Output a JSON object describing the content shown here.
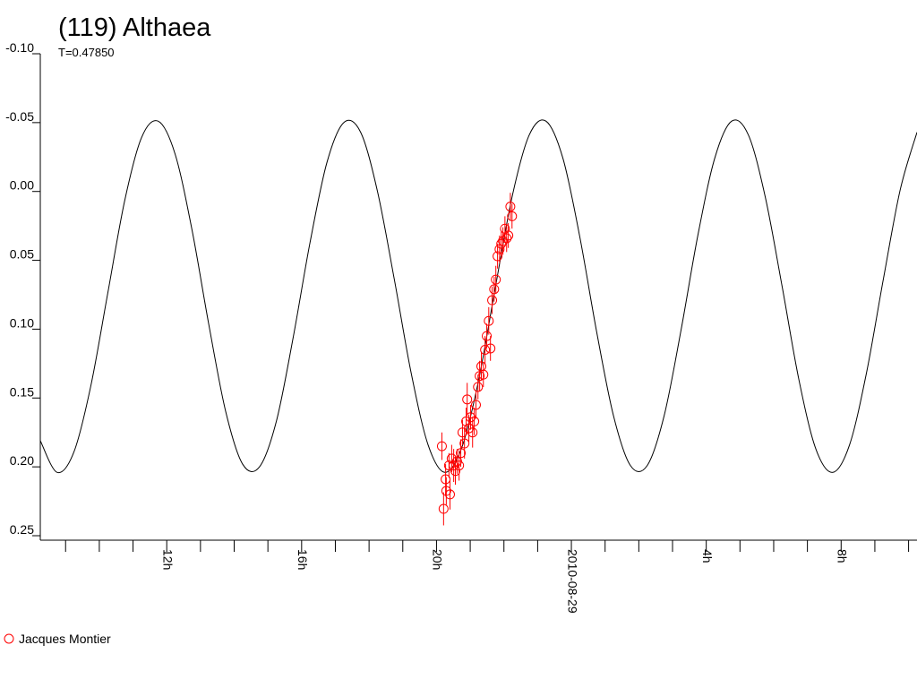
{
  "chart_data": {
    "type": "scatter",
    "title": "(119) Althaea",
    "subtitle": "T=0.47850",
    "xlim": [
      8.25,
      34.25
    ],
    "xticks": [
      {
        "value": 12,
        "label": "12h"
      },
      {
        "value": 16,
        "label": "16h"
      },
      {
        "value": 20,
        "label": "20h"
      },
      {
        "value": 24,
        "label": "2010-08-29"
      },
      {
        "value": 28,
        "label": "4h"
      },
      {
        "value": 32,
        "label": "8h"
      }
    ],
    "xminorticks": [
      9,
      10,
      11,
      13,
      14,
      15,
      17,
      18,
      19,
      21,
      22,
      23,
      25,
      26,
      27,
      29,
      30,
      31,
      33,
      34
    ],
    "ylim": [
      -0.1,
      0.25
    ],
    "y_inverted": true,
    "yticks": [
      {
        "value": -0.1,
        "label": "-0.10"
      },
      {
        "value": -0.05,
        "label": "-0.05"
      },
      {
        "value": 0,
        "label": "0.00"
      },
      {
        "value": 0.05,
        "label": "0.05"
      },
      {
        "value": 0.1,
        "label": "0.10"
      },
      {
        "value": 0.15,
        "label": "0.15"
      },
      {
        "value": 0.2,
        "label": "0.20"
      },
      {
        "value": 0.25,
        "label": "0.25"
      }
    ],
    "curve": {
      "color": "#000000",
      "x": [
        8.25,
        8.75,
        9.25,
        9.75,
        10.25,
        10.75,
        11.25,
        11.75,
        12.25,
        12.75,
        13.25,
        13.75,
        14.25,
        14.75,
        15.25,
        15.75,
        16.25,
        16.75,
        17.25,
        17.75,
        18.25,
        18.75,
        19.25,
        19.75,
        20.25,
        20.75,
        21.25,
        21.75,
        22.25,
        22.75,
        23.25,
        23.75,
        24.25,
        24.75,
        25.25,
        25.75,
        26.25,
        26.75,
        27.25,
        27.75,
        28.25,
        28.75,
        29.25,
        29.75,
        30.25,
        30.75,
        31.25,
        31.75,
        32.25,
        32.75,
        33.25,
        33.75,
        34.25
      ],
      "values": [
        0.181,
        0.204,
        0.189,
        0.141,
        0.074,
        0.007,
        -0.039,
        -0.051,
        -0.027,
        0.028,
        0.097,
        0.16,
        0.198,
        0.2,
        0.167,
        0.106,
        0.037,
        -0.021,
        -0.05,
        -0.043,
        0.0,
        0.064,
        0.132,
        0.184,
        0.204,
        0.186,
        0.137,
        0.069,
        0.003,
        -0.041,
        -0.051,
        -0.024,
        0.033,
        0.102,
        0.163,
        0.199,
        0.199,
        0.163,
        0.101,
        0.032,
        -0.024,
        -0.051,
        -0.041,
        0.004,
        0.069,
        0.137,
        0.187,
        0.204,
        0.184,
        0.132,
        0.064,
        -0.001,
        -0.043
      ]
    },
    "series": [
      {
        "name": "Jacques Montier",
        "color": "#ff0000",
        "x": [
          20.16,
          20.21,
          20.27,
          20.29,
          20.37,
          20.4,
          20.45,
          20.51,
          20.56,
          20.61,
          20.67,
          20.72,
          20.77,
          20.83,
          20.88,
          20.91,
          20.96,
          21.01,
          21.07,
          21.12,
          21.17,
          21.23,
          21.28,
          21.33,
          21.39,
          21.44,
          21.49,
          21.55,
          21.6,
          21.65,
          21.71,
          21.76,
          21.81,
          21.87,
          21.92,
          21.97,
          22.03,
          22.08,
          22.13,
          22.19,
          22.24
        ],
        "values": [
          0.185,
          0.2305,
          0.209,
          0.2175,
          0.199,
          0.22,
          0.194,
          0.199,
          0.203,
          0.196,
          0.199,
          0.19,
          0.175,
          0.183,
          0.167,
          0.151,
          0.172,
          0.164,
          0.175,
          0.167,
          0.155,
          0.142,
          0.134,
          0.127,
          0.133,
          0.115,
          0.105,
          0.094,
          0.114,
          0.079,
          0.071,
          0.064,
          0.047,
          0.042,
          0.038,
          0.036,
          0.027,
          0.034,
          0.032,
          0.011,
          0.018
        ],
        "errors": [
          0.01,
          0.012,
          0.011,
          0.01,
          0.009,
          0.011,
          0.01,
          0.012,
          0.01,
          0.009,
          0.011,
          0.01,
          0.009,
          0.011,
          0.01,
          0.012,
          0.01,
          0.009,
          0.011,
          0.01,
          0.01,
          0.009,
          0.011,
          0.01,
          0.009,
          0.01,
          0.009,
          0.01,
          0.009,
          0.01,
          0.009,
          0.01,
          0.009,
          0.01,
          0.009,
          0.01,
          0.009,
          0.01,
          0.009,
          0.01,
          0.009
        ]
      }
    ]
  }
}
